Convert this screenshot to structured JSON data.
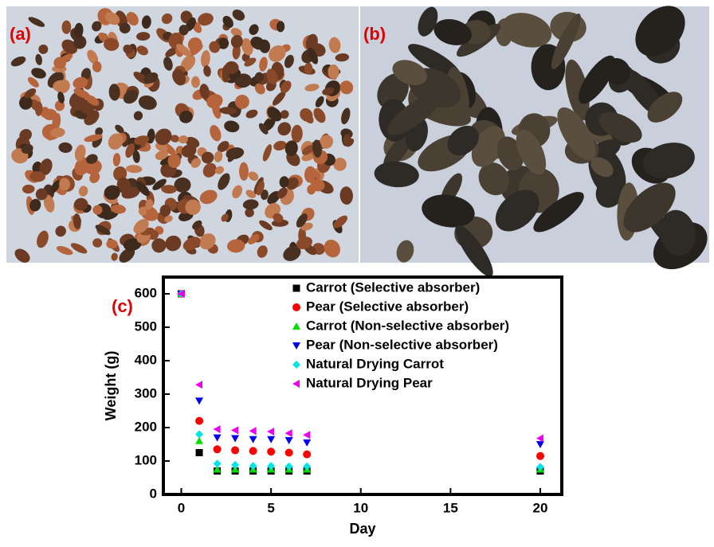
{
  "panel_labels": [
    "(a)",
    "(b)",
    "(c)"
  ],
  "chart_data": {
    "type": "scatter",
    "xlabel": "Day",
    "ylabel": "Weight (g)",
    "x": [
      0,
      1,
      2,
      3,
      4,
      5,
      6,
      7,
      20
    ],
    "xlim": [
      -1,
      21.2
    ],
    "xticks": [
      0,
      5,
      10,
      15,
      20
    ],
    "ylim": [
      0,
      650
    ],
    "yticks": [
      0,
      100,
      200,
      300,
      400,
      500,
      600
    ],
    "series": [
      {
        "name": "Carrot (Selective absorber)",
        "color": "#000000",
        "marker": "square",
        "values": [
          600,
          125,
          70,
          70,
          70,
          70,
          70,
          70,
          70
        ]
      },
      {
        "name": "Pear (Selective absorber)",
        "color": "#ff0000",
        "marker": "circle",
        "values": [
          600,
          220,
          135,
          132,
          130,
          128,
          125,
          120,
          115
        ]
      },
      {
        "name": "Carrot (Non-selective absorber)",
        "color": "#00dd00",
        "marker": "triangle-up",
        "values": [
          600,
          160,
          75,
          75,
          75,
          75,
          75,
          75,
          75
        ]
      },
      {
        "name": "Pear (Non-selective absorber)",
        "color": "#0000ee",
        "marker": "triangle-down",
        "values": [
          600,
          280,
          170,
          168,
          165,
          165,
          162,
          155,
          150
        ]
      },
      {
        "name": "Natural Drying Carrot",
        "color": "#00e5e5",
        "marker": "diamond",
        "values": [
          600,
          180,
          92,
          88,
          85,
          85,
          84,
          84,
          82
        ]
      },
      {
        "name": "Natural Drying Pear",
        "color": "#ee00ee",
        "marker": "triangle-left",
        "values": [
          600,
          328,
          195,
          192,
          190,
          188,
          183,
          178,
          168
        ]
      }
    ]
  }
}
